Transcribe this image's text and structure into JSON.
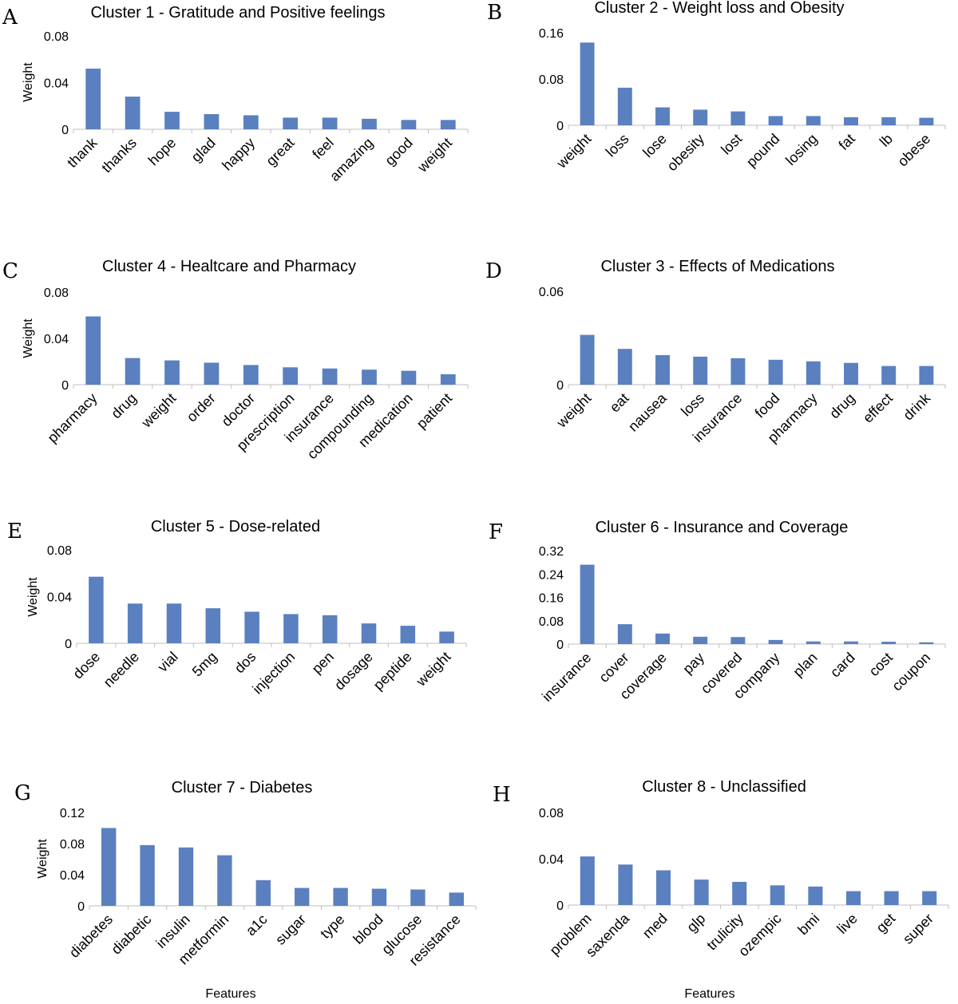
{
  "figure": {
    "bar_color": "#5b80bf",
    "axis_color": "#bfbfbf"
  },
  "chart_data": [
    {
      "panel": "A",
      "type": "bar",
      "title": "Cluster 1 - Gratitude and Positive feelings",
      "ylabel": "Weight",
      "xlabel": "",
      "ylim": [
        0,
        0.08
      ],
      "yticks": [
        "0",
        "0.04",
        "0.08"
      ],
      "categories": [
        "thank",
        "thanks",
        "hope",
        "glad",
        "happy",
        "great",
        "feel",
        "amazing",
        "good",
        "weight"
      ],
      "values": [
        0.052,
        0.028,
        0.015,
        0.013,
        0.012,
        0.01,
        0.01,
        0.009,
        0.008,
        0.008
      ]
    },
    {
      "panel": "B",
      "type": "bar",
      "title": "Cluster 2 - Weight loss and Obesity",
      "ylabel": "",
      "xlabel": "",
      "ylim": [
        0,
        0.16
      ],
      "yticks": [
        "0",
        "0.08",
        "0.16"
      ],
      "categories": [
        "weight",
        "loss",
        "lose",
        "obesity",
        "lost",
        "pound",
        "losing",
        "fat",
        "lb",
        "obese"
      ],
      "values": [
        0.143,
        0.065,
        0.031,
        0.027,
        0.024,
        0.016,
        0.016,
        0.014,
        0.014,
        0.013
      ]
    },
    {
      "panel": "C",
      "type": "bar",
      "title": "Cluster 4 - Healtcare and Pharmacy",
      "ylabel": "Weight",
      "xlabel": "",
      "ylim": [
        0,
        0.08
      ],
      "yticks": [
        "0",
        "0.04",
        "0.08"
      ],
      "categories": [
        "pharmacy",
        "drug",
        "weight",
        "order",
        "doctor",
        "prescription",
        "insurance",
        "compounding",
        "medication",
        "patient"
      ],
      "values": [
        0.059,
        0.023,
        0.021,
        0.019,
        0.017,
        0.015,
        0.014,
        0.013,
        0.012,
        0.009
      ]
    },
    {
      "panel": "D",
      "type": "bar",
      "title": "Cluster 3 - Effects of Medications",
      "ylabel": "",
      "xlabel": "",
      "ylim": [
        0,
        0.06
      ],
      "yticks": [
        "0",
        "0.06"
      ],
      "categories": [
        "weight",
        "eat",
        "nausea",
        "loss",
        "insurance",
        "food",
        "pharmacy",
        "drug",
        "effect",
        "drink"
      ],
      "values": [
        0.032,
        0.023,
        0.019,
        0.018,
        0.017,
        0.016,
        0.015,
        0.014,
        0.012,
        0.012
      ]
    },
    {
      "panel": "E",
      "type": "bar",
      "title": "Cluster 5 - Dose-related",
      "ylabel": "Weight",
      "xlabel": "",
      "ylim": [
        0,
        0.08
      ],
      "yticks": [
        "0",
        "0.04",
        "0.08"
      ],
      "categories": [
        "dose",
        "needle",
        "vial",
        "5mg",
        "dos",
        "injection",
        "pen",
        "dosage",
        "peptide",
        "weight"
      ],
      "values": [
        0.057,
        0.034,
        0.034,
        0.03,
        0.027,
        0.025,
        0.024,
        0.017,
        0.015,
        0.01
      ]
    },
    {
      "panel": "F",
      "type": "bar",
      "title": "Cluster 6 - Insurance and Coverage",
      "ylabel": "",
      "xlabel": "",
      "ylim": [
        0,
        0.32
      ],
      "yticks": [
        "0",
        "0.08",
        "0.16",
        "0.24",
        "0.32"
      ],
      "categories": [
        "insurance",
        "cover",
        "coverage",
        "pay",
        "covered",
        "company",
        "plan",
        "card",
        "cost",
        "coupon"
      ],
      "values": [
        0.272,
        0.068,
        0.036,
        0.025,
        0.024,
        0.014,
        0.009,
        0.009,
        0.008,
        0.006
      ]
    },
    {
      "panel": "G",
      "type": "bar",
      "title": "Cluster 7 - Diabetes",
      "ylabel": "Weight",
      "xlabel": "Features",
      "ylim": [
        0,
        0.12
      ],
      "yticks": [
        "0",
        "0.04",
        "0.08",
        "0.12"
      ],
      "categories": [
        "diabetes",
        "diabetic",
        "insulin",
        "metformin",
        "a1c",
        "sugar",
        "type",
        "blood",
        "glucose",
        "resistance"
      ],
      "values": [
        0.1,
        0.078,
        0.075,
        0.065,
        0.033,
        0.023,
        0.023,
        0.022,
        0.021,
        0.017
      ]
    },
    {
      "panel": "H",
      "type": "bar",
      "title": "Cluster 8 - Unclassified",
      "ylabel": "",
      "xlabel": "Features",
      "ylim": [
        0,
        0.08
      ],
      "yticks": [
        "0",
        "0.04",
        "0.08"
      ],
      "categories": [
        "problem",
        "saxenda",
        "med",
        "glp",
        "trulicity",
        "ozempic",
        "bmi",
        "live",
        "get",
        "super"
      ],
      "values": [
        0.042,
        0.035,
        0.03,
        0.022,
        0.02,
        0.017,
        0.016,
        0.012,
        0.012,
        0.012
      ]
    }
  ]
}
